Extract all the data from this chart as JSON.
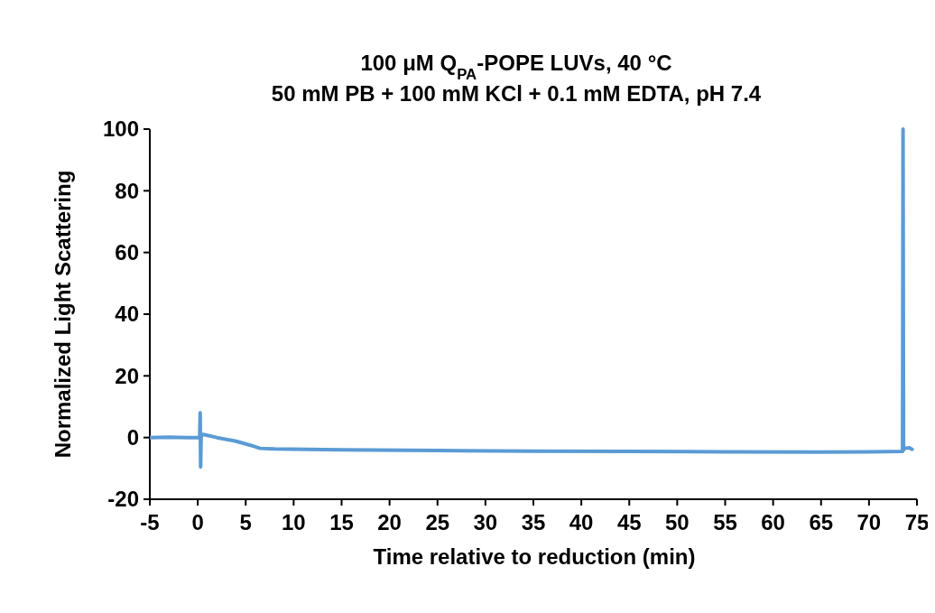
{
  "chart_data": {
    "type": "line",
    "title": "100 μM Q$_{PA}$-POPE LUVs, 40 °C",
    "subtitle": "50 mM PB + 100 mM KCl + 0.1 mM EDTA, pH 7.4",
    "xlabel": "Time relative to reduction (min)",
    "ylabel": "Normalized Light Scattering",
    "xlim": [
      -5,
      75
    ],
    "xticks": [
      -5,
      0,
      5,
      10,
      15,
      20,
      25,
      30,
      35,
      40,
      45,
      50,
      55,
      60,
      65,
      70,
      75
    ],
    "ylim": [
      -20,
      100
    ],
    "yticks": [
      -20,
      0,
      20,
      40,
      60,
      80,
      100
    ],
    "grid": false,
    "marker": "none",
    "line_style": "solid",
    "series": [
      {
        "color": "#5b9bd5",
        "x": [
          -5,
          -3,
          -1,
          0.1,
          0.2,
          0.25,
          0.3,
          0.35,
          0.4,
          0.6,
          2,
          4,
          5.5,
          6.5,
          8,
          15,
          25,
          35,
          45,
          55,
          65,
          70,
          73.4,
          73.5,
          73.55,
          73.6,
          73.7,
          74.2,
          74.5
        ],
        "values": [
          0,
          0.1,
          0,
          0,
          0,
          8,
          -9.5,
          0,
          1,
          1,
          0,
          -1.2,
          -2.5,
          -3.5,
          -3.7,
          -4,
          -4.2,
          -4.4,
          -4.5,
          -4.6,
          -4.7,
          -4.6,
          -4.5,
          -4.5,
          100,
          -4,
          -3.5,
          -3.3,
          -3.8
        ]
      }
    ]
  }
}
